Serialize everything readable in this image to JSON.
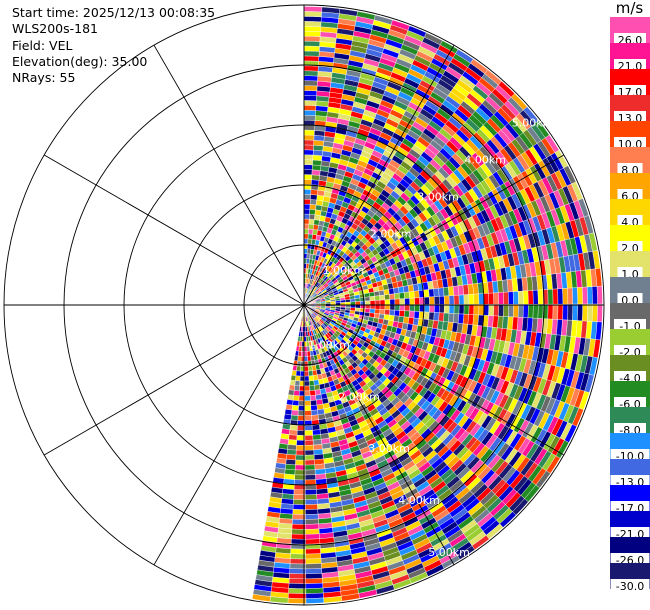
{
  "header": {
    "start_time": "Start time: 2025/12/13 00:08:35",
    "instrument": "WLS200s-181",
    "field": "Field: VEL",
    "elevation": "Elevation(deg): 35.00",
    "nrays": "NRays: 55"
  },
  "colorbar": {
    "unit": "m/s",
    "ticks": [
      "26.0",
      "21.0",
      "17.0",
      "13.0",
      "10.0",
      "8.0",
      "6.0",
      "4.0",
      "2.0",
      "1.0",
      "0.0",
      "-1.0",
      "-2.0",
      "-4.0",
      "-6.0",
      "-8.0",
      "-10.0",
      "-13.0",
      "-17.0",
      "-21.0",
      "-26.0",
      "-30.0"
    ],
    "colors": [
      "#ff4fb0",
      "#ff1493",
      "#ff0000",
      "#ee2c2c",
      "#ff4500",
      "#ff7f50",
      "#ffa500",
      "#ffd700",
      "#ffff00",
      "#e3e36b",
      "#708090",
      "#696969",
      "#9acd32",
      "#6b8e23",
      "#228b22",
      "#2e8b57",
      "#1e90ff",
      "#4169e1",
      "#0000ff",
      "#0000cd",
      "#000080",
      "#191970"
    ]
  },
  "chart_data": {
    "type": "polar-ppi",
    "field": "VEL",
    "units": "m/s",
    "nrays": 55,
    "elevation_deg": 35.0,
    "azimuth_coverage_deg": [
      0,
      190
    ],
    "range_rings": [
      "1.00km",
      "2.00km",
      "3.00km",
      "4.00km",
      "5.00km"
    ],
    "spokes_deg": [
      0,
      30,
      60,
      90,
      120,
      150,
      180,
      210,
      240,
      270,
      300,
      330
    ],
    "value_range": [
      -30,
      26
    ]
  }
}
